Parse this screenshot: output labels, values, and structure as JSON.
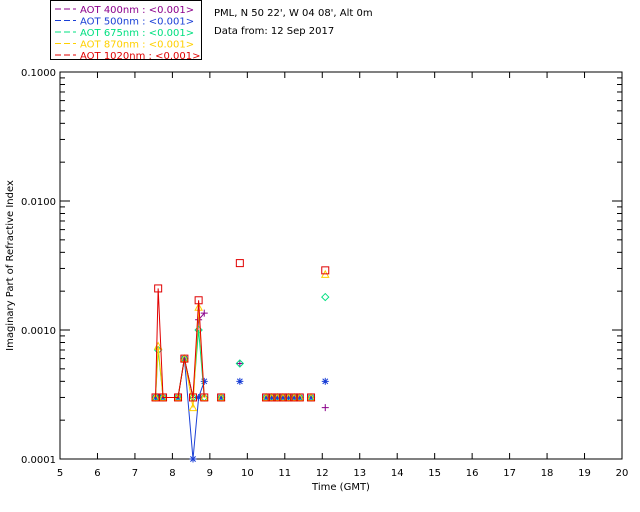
{
  "header": {
    "site": "PML, N 50 22', W 04 08', Alt 0m",
    "date": "Data from: 12 Sep 2017"
  },
  "chart_data": {
    "type": "line",
    "title": "",
    "xlabel": "Time (GMT)",
    "ylabel": "Imaginary Part of Refractive Index",
    "yscale": "log",
    "xlim": [
      5,
      20
    ],
    "ylim": [
      0.0001,
      0.1
    ],
    "xticks": [
      5,
      6,
      7,
      8,
      9,
      10,
      11,
      12,
      13,
      14,
      15,
      16,
      17,
      18,
      19,
      20
    ],
    "yticks": [
      0.0001,
      0.001,
      0.01,
      0.1
    ],
    "ytick_labels": [
      "0.0001",
      "0.0010",
      "0.0100",
      "0.1000"
    ],
    "legend": [
      {
        "label": "AOT  400nm : <0.001>",
        "color": "#8b008b"
      },
      {
        "label": "AOT  500nm : <0.001>",
        "color": "#1a3fd6"
      },
      {
        "label": "AOT  675nm : <0.001>",
        "color": "#00e080"
      },
      {
        "label": "AOT  870nm : <0.001>",
        "color": "#ffd000"
      },
      {
        "label": "AOT 1020nm : <0.001>",
        "color": "#e00000"
      }
    ],
    "series": [
      {
        "name": "400nm",
        "color": "#8b008b",
        "marker": "plus",
        "line_to": 8.85,
        "points": [
          [
            7.55,
            0.0003
          ],
          [
            7.62,
            0.0003
          ],
          [
            7.75,
            0.0003
          ],
          [
            8.15,
            0.0003
          ],
          [
            8.32,
            0.0006
          ],
          [
            8.55,
            0.0003
          ],
          [
            8.7,
            0.0012
          ],
          [
            8.85,
            0.00135
          ],
          [
            9.3,
            0.0003
          ],
          [
            9.8,
            0.00055
          ],
          [
            10.5,
            0.0003
          ],
          [
            10.65,
            0.0003
          ],
          [
            10.8,
            0.0003
          ],
          [
            10.95,
            0.0003
          ],
          [
            11.1,
            0.0003
          ],
          [
            11.25,
            0.0003
          ],
          [
            11.4,
            0.0003
          ],
          [
            11.7,
            0.0003
          ],
          [
            12.08,
            0.00025
          ]
        ]
      },
      {
        "name": "500nm",
        "color": "#1a3fd6",
        "marker": "star",
        "line_to": 8.85,
        "points": [
          [
            7.55,
            0.0003
          ],
          [
            7.62,
            0.0003
          ],
          [
            7.75,
            0.0003
          ],
          [
            8.15,
            0.0003
          ],
          [
            8.32,
            0.0006
          ],
          [
            8.55,
            0.0001
          ],
          [
            8.7,
            0.0003
          ],
          [
            8.85,
            0.0004
          ],
          [
            9.3,
            0.0003
          ],
          [
            9.8,
            0.0004
          ],
          [
            10.5,
            0.0003
          ],
          [
            10.65,
            0.0003
          ],
          [
            10.8,
            0.0003
          ],
          [
            10.95,
            0.0003
          ],
          [
            11.1,
            0.0003
          ],
          [
            11.25,
            0.0003
          ],
          [
            11.4,
            0.0003
          ],
          [
            11.7,
            0.0003
          ],
          [
            12.08,
            0.0004
          ]
        ]
      },
      {
        "name": "675nm",
        "color": "#00e080",
        "marker": "diamond",
        "line_to": 8.85,
        "points": [
          [
            7.55,
            0.0003
          ],
          [
            7.62,
            0.0007
          ],
          [
            7.75,
            0.0003
          ],
          [
            8.15,
            0.0003
          ],
          [
            8.32,
            0.0006
          ],
          [
            8.55,
            0.0003
          ],
          [
            8.7,
            0.001
          ],
          [
            8.85,
            0.0003
          ],
          [
            9.3,
            0.0003
          ],
          [
            9.8,
            0.00055
          ],
          [
            10.5,
            0.0003
          ],
          [
            10.65,
            0.0003
          ],
          [
            10.8,
            0.0003
          ],
          [
            10.95,
            0.0003
          ],
          [
            11.1,
            0.0003
          ],
          [
            11.25,
            0.0003
          ],
          [
            11.4,
            0.0003
          ],
          [
            11.7,
            0.0003
          ],
          [
            12.08,
            0.0018
          ]
        ]
      },
      {
        "name": "870nm",
        "color": "#ffd000",
        "marker": "triangle",
        "line_to": 8.85,
        "points": [
          [
            7.55,
            0.0003
          ],
          [
            7.62,
            0.00075
          ],
          [
            7.75,
            0.0003
          ],
          [
            8.15,
            0.0003
          ],
          [
            8.32,
            0.0006
          ],
          [
            8.55,
            0.00025
          ],
          [
            8.7,
            0.0015
          ],
          [
            8.85,
            0.0003
          ],
          [
            9.3,
            0.0003
          ],
          [
            10.5,
            0.0003
          ],
          [
            10.65,
            0.0003
          ],
          [
            10.8,
            0.0003
          ],
          [
            10.95,
            0.0003
          ],
          [
            11.1,
            0.0003
          ],
          [
            11.25,
            0.0003
          ],
          [
            11.4,
            0.0003
          ],
          [
            11.7,
            0.0003
          ],
          [
            12.08,
            0.0027
          ]
        ]
      },
      {
        "name": "1020nm",
        "color": "#e00000",
        "marker": "square",
        "line_to": 8.85,
        "points": [
          [
            7.55,
            0.0003
          ],
          [
            7.62,
            0.0021
          ],
          [
            7.75,
            0.0003
          ],
          [
            8.15,
            0.0003
          ],
          [
            8.32,
            0.0006
          ],
          [
            8.55,
            0.0003
          ],
          [
            8.7,
            0.0017
          ],
          [
            8.85,
            0.0003
          ],
          [
            9.3,
            0.0003
          ],
          [
            9.8,
            0.0033
          ],
          [
            10.5,
            0.0003
          ],
          [
            10.65,
            0.0003
          ],
          [
            10.8,
            0.0003
          ],
          [
            10.95,
            0.0003
          ],
          [
            11.1,
            0.0003
          ],
          [
            11.25,
            0.0003
          ],
          [
            11.4,
            0.0003
          ],
          [
            11.7,
            0.0003
          ],
          [
            12.08,
            0.0029
          ]
        ]
      }
    ]
  }
}
